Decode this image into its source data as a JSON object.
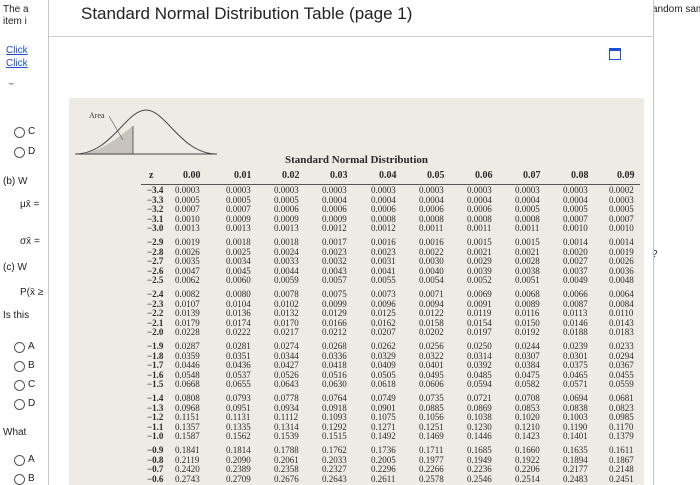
{
  "background": {
    "left_texts": {
      "header_line1": "The a",
      "header_line2": "item i",
      "link1": "Click",
      "link2": "Click",
      "part_b": "(b) W",
      "mu_xbar": "μx̄ =",
      "sigma_xbar": "σx̄ =",
      "part_c": "(c) W",
      "prob": "P(x̄ ≥",
      "is_this": "Is this",
      "what": "What"
    },
    "options_top": [
      "C",
      "D"
    ],
    "options_mid": [
      "A",
      "B",
      "C",
      "D"
    ],
    "options_bottom": [
      "A",
      "B"
    ],
    "right_texts": {
      "header": "andom sample of 4",
      "question_mark": "?"
    }
  },
  "modal": {
    "title": "Standard Normal Distribution Table (page 1)"
  },
  "table": {
    "area_label": "Area",
    "title": "Standard Normal Distribution",
    "z_header": "z",
    "col_headers": [
      "0.00",
      "0.01",
      "0.02",
      "0.03",
      "0.04",
      "0.05",
      "0.06",
      "0.07",
      "0.08",
      "0.09"
    ],
    "groups": [
      {
        "z": [
          "−3.4",
          "−3.3",
          "−3.2",
          "−3.1",
          "−3.0"
        ],
        "cols": [
          [
            "0.0003",
            "0.0005",
            "0.0007",
            "0.0010",
            "0.0013"
          ],
          [
            "0.0003",
            "0.0005",
            "0.0007",
            "0.0009",
            "0.0013"
          ],
          [
            "0.0003",
            "0.0005",
            "0.0006",
            "0.0009",
            "0.0013"
          ],
          [
            "0.0003",
            "0.0004",
            "0.0006",
            "0.0009",
            "0.0012"
          ],
          [
            "0.0003",
            "0.0004",
            "0.0006",
            "0.0008",
            "0.0012"
          ],
          [
            "0.0003",
            "0.0004",
            "0.0006",
            "0.0008",
            "0.0011"
          ],
          [
            "0.0003",
            "0.0004",
            "0.0006",
            "0.0008",
            "0.0011"
          ],
          [
            "0.0003",
            "0.0004",
            "0.0005",
            "0.0008",
            "0.0011"
          ],
          [
            "0.0003",
            "0.0004",
            "0.0005",
            "0.0007",
            "0.0010"
          ],
          [
            "0.0002",
            "0.0003",
            "0.0005",
            "0.0007",
            "0.0010"
          ]
        ]
      },
      {
        "z": [
          "−2.9",
          "−2.8",
          "−2.7",
          "−2.6",
          "−2.5"
        ],
        "cols": [
          [
            "0.0019",
            "0.0026",
            "0.0035",
            "0.0047",
            "0.0062"
          ],
          [
            "0.0018",
            "0.0025",
            "0.0034",
            "0.0045",
            "0.0060"
          ],
          [
            "0.0018",
            "0.0024",
            "0.0033",
            "0.0044",
            "0.0059"
          ],
          [
            "0.0017",
            "0.0023",
            "0.0032",
            "0.0043",
            "0.0057"
          ],
          [
            "0.0016",
            "0.0023",
            "0.0031",
            "0.0041",
            "0.0055"
          ],
          [
            "0.0016",
            "0.0022",
            "0.0030",
            "0.0040",
            "0.0054"
          ],
          [
            "0.0015",
            "0.0021",
            "0.0029",
            "0.0039",
            "0.0052"
          ],
          [
            "0.0015",
            "0.0021",
            "0.0028",
            "0.0038",
            "0.0051"
          ],
          [
            "0.0014",
            "0.0020",
            "0.0027",
            "0.0037",
            "0.0049"
          ],
          [
            "0.0014",
            "0.0019",
            "0.0026",
            "0.0036",
            "0.0048"
          ]
        ]
      },
      {
        "z": [
          "−2.4",
          "−2.3",
          "−2.2",
          "−2.1",
          "−2.0"
        ],
        "cols": [
          [
            "0.0082",
            "0.0107",
            "0.0139",
            "0.0179",
            "0.0228"
          ],
          [
            "0.0080",
            "0.0104",
            "0.0136",
            "0.0174",
            "0.0222"
          ],
          [
            "0.0078",
            "0.0102",
            "0.0132",
            "0.0170",
            "0.0217"
          ],
          [
            "0.0075",
            "0.0099",
            "0.0129",
            "0.0166",
            "0.0212"
          ],
          [
            "0.0073",
            "0.0096",
            "0.0125",
            "0.0162",
            "0.0207"
          ],
          [
            "0.0071",
            "0.0094",
            "0.0122",
            "0.0158",
            "0.0202"
          ],
          [
            "0.0069",
            "0.0091",
            "0.0119",
            "0.0154",
            "0.0197"
          ],
          [
            "0.0068",
            "0.0089",
            "0.0116",
            "0.0150",
            "0.0192"
          ],
          [
            "0.0066",
            "0.0087",
            "0.0113",
            "0.0146",
            "0.0188"
          ],
          [
            "0.0064",
            "0.0084",
            "0.0110",
            "0.0143",
            "0.0183"
          ]
        ]
      },
      {
        "z": [
          "−1.9",
          "−1.8",
          "−1.7",
          "−1.6",
          "−1.5"
        ],
        "cols": [
          [
            "0.0287",
            "0.0359",
            "0.0446",
            "0.0548",
            "0.0668"
          ],
          [
            "0.0281",
            "0.0351",
            "0.0436",
            "0.0537",
            "0.0655"
          ],
          [
            "0.0274",
            "0.0344",
            "0.0427",
            "0.0526",
            "0.0643"
          ],
          [
            "0.0268",
            "0.0336",
            "0.0418",
            "0.0516",
            "0.0630"
          ],
          [
            "0.0262",
            "0.0329",
            "0.0409",
            "0.0505",
            "0.0618"
          ],
          [
            "0.0256",
            "0.0322",
            "0.0401",
            "0.0495",
            "0.0606"
          ],
          [
            "0.0250",
            "0.0314",
            "0.0392",
            "0.0485",
            "0.0594"
          ],
          [
            "0.0244",
            "0.0307",
            "0.0384",
            "0.0475",
            "0.0582"
          ],
          [
            "0.0239",
            "0.0301",
            "0.0375",
            "0.0465",
            "0.0571"
          ],
          [
            "0.0233",
            "0.0294",
            "0.0367",
            "0.0455",
            "0.0559"
          ]
        ]
      },
      {
        "z": [
          "−1.4",
          "−1.3",
          "−1.2",
          "−1.1",
          "−1.0"
        ],
        "cols": [
          [
            "0.0808",
            "0.0968",
            "0.1151",
            "0.1357",
            "0.1587"
          ],
          [
            "0.0793",
            "0.0951",
            "0.1131",
            "0.1335",
            "0.1562"
          ],
          [
            "0.0778",
            "0.0934",
            "0.1112",
            "0.1314",
            "0.1539"
          ],
          [
            "0.0764",
            "0.0918",
            "0.1093",
            "0.1292",
            "0.1515"
          ],
          [
            "0.0749",
            "0.0901",
            "0.1075",
            "0.1271",
            "0.1492"
          ],
          [
            "0.0735",
            "0.0885",
            "0.1056",
            "0.1251",
            "0.1469"
          ],
          [
            "0.0721",
            "0.0869",
            "0.1038",
            "0.1230",
            "0.1446"
          ],
          [
            "0.0708",
            "0.0853",
            "0.1020",
            "0.1210",
            "0.1423"
          ],
          [
            "0.0694",
            "0.0838",
            "0.1003",
            "0.1190",
            "0.1401"
          ],
          [
            "0.0681",
            "0.0823",
            "0.0985",
            "0.1170",
            "0.1379"
          ]
        ]
      },
      {
        "z": [
          "−0.9",
          "−0.8",
          "−0.7",
          "−0.6"
        ],
        "cols": [
          [
            "0.1841",
            "0.2119",
            "0.2420",
            "0.2743"
          ],
          [
            "0.1814",
            "0.2090",
            "0.2389",
            "0.2709"
          ],
          [
            "0.1788",
            "0.2061",
            "0.2358",
            "0.2676"
          ],
          [
            "0.1762",
            "0.2033",
            "0.2327",
            "0.2643"
          ],
          [
            "0.1736",
            "0.2005",
            "0.2296",
            "0.2611"
          ],
          [
            "0.1711",
            "0.1977",
            "0.2266",
            "0.2578"
          ],
          [
            "0.1685",
            "0.1949",
            "0.2236",
            "0.2546"
          ],
          [
            "0.1660",
            "0.1922",
            "0.2206",
            "0.2514"
          ],
          [
            "0.1635",
            "0.1894",
            "0.2177",
            "0.2483"
          ],
          [
            "0.1611",
            "0.1867",
            "0.2148",
            "0.2451"
          ]
        ]
      }
    ]
  }
}
